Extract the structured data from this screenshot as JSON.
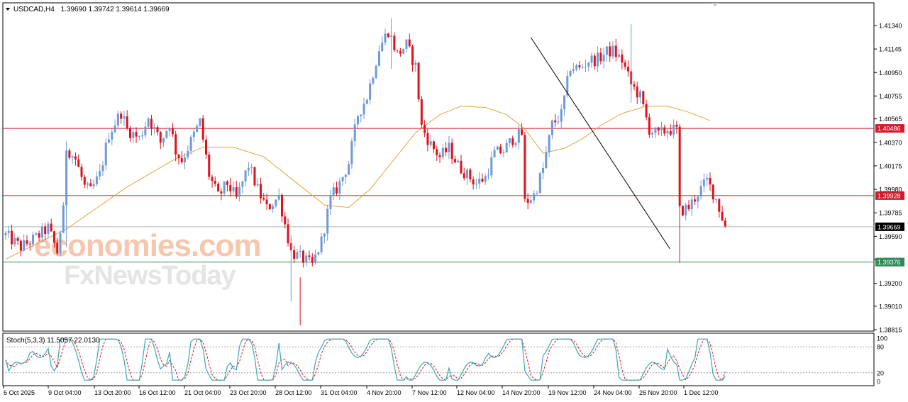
{
  "header": {
    "symbol_timeframe": "USDCAD,H4",
    "ohlc": "1.39690 1.39742 1.39614 1.39669"
  },
  "stoch_header": "Stoch(5,3,3) 11.5057 22.0130",
  "watermark": {
    "line1": "economies.com",
    "line2": "FxNewsToday"
  },
  "colors": {
    "bull": "#6f9ad6",
    "bear": "#e0111b",
    "ma": "#e8a23a",
    "trendline": "#000000",
    "resistance": "#d21a2b",
    "support": "#2e8b57",
    "current": "#000000",
    "stoch_main": "#3aa7b3",
    "stoch_signal": "#e0111b"
  },
  "chart_data": {
    "type": "candlestick",
    "symbol": "USDCAD",
    "timeframe": "H4",
    "ylim": [
      1.3876,
      1.4164
    ],
    "y_ticks": [
      "1.41340",
      "1.41145",
      "1.40950",
      "1.40755",
      "1.40565",
      "1.40370",
      "1.40175",
      "1.39980",
      "1.39785",
      "1.39590",
      "1.39395",
      "1.39200",
      "1.39010",
      "1.38815"
    ],
    "x_labels": [
      "6 Oct 2025",
      "9 Oct 04:00",
      "13 Oct 20:00",
      "16 Oct 12:00",
      "21 Oct 04:00",
      "23 Oct 20:00",
      "28 Oct 12:00",
      "31 Oct 04:00",
      "4 Nov 20:00",
      "7 Nov 12:00",
      "12 Nov 04:00",
      "14 Nov 20:00",
      "19 Nov 12:00",
      "24 Nov 04:00",
      "26 Nov 20:00",
      "1 Dec 12:00"
    ],
    "levels": [
      {
        "name": "resistance-1",
        "value": 1.40486,
        "label": "1.40486"
      },
      {
        "name": "resistance-2",
        "value": 1.39928,
        "label": "1.39928"
      },
      {
        "name": "current-price",
        "value": 1.39669,
        "label": "1.39669"
      },
      {
        "name": "support",
        "value": 1.39376,
        "label": "1.39376"
      }
    ],
    "trendline": [
      {
        "bar": 173,
        "price": 1.4124
      },
      {
        "bar": 230,
        "price": 1.395
      }
    ],
    "close_path": [
      [
        0,
        1.396
      ],
      [
        5,
        1.395
      ],
      [
        10,
        1.3958
      ],
      [
        14,
        1.3966
      ],
      [
        17,
        1.3946
      ],
      [
        19,
        1.398
      ],
      [
        20,
        1.4033
      ],
      [
        23,
        1.4023
      ],
      [
        26,
        1.4
      ],
      [
        28,
        1.3996
      ],
      [
        31,
        1.401
      ],
      [
        34,
        1.4044
      ],
      [
        38,
        1.4062
      ],
      [
        40,
        1.4048
      ],
      [
        44,
        1.404
      ],
      [
        47,
        1.4058
      ],
      [
        51,
        1.4037
      ],
      [
        54,
        1.4053
      ],
      [
        56,
        1.403
      ],
      [
        58,
        1.4022
      ],
      [
        61,
        1.4038
      ],
      [
        64,
        1.4054
      ],
      [
        67,
        1.401
      ],
      [
        70,
        1.3992
      ],
      [
        73,
        1.4003
      ],
      [
        76,
        1.399
      ],
      [
        80,
        1.4018
      ],
      [
        83,
        1.3998
      ],
      [
        86,
        1.3982
      ],
      [
        90,
        1.3992
      ],
      [
        94,
        1.3946
      ],
      [
        98,
        1.394
      ],
      [
        101,
        1.3935
      ],
      [
        104,
        1.3955
      ],
      [
        107,
        1.399
      ],
      [
        110,
        1.4003
      ],
      [
        113,
        1.402
      ],
      [
        116,
        1.406
      ],
      [
        119,
        1.4075
      ],
      [
        123,
        1.4115
      ],
      [
        126,
        1.413
      ],
      [
        129,
        1.411
      ],
      [
        132,
        1.4118
      ],
      [
        135,
        1.41
      ],
      [
        137,
        1.405
      ],
      [
        140,
        1.4035
      ],
      [
        143,
        1.4025
      ],
      [
        146,
        1.4032
      ],
      [
        149,
        1.4018
      ],
      [
        152,
        1.401
      ],
      [
        155,
        1.4003
      ],
      [
        158,
        1.4008
      ],
      [
        161,
        1.4028
      ],
      [
        164,
        1.403
      ],
      [
        167,
        1.404
      ],
      [
        170,
        1.4044
      ],
      [
        171,
        1.3987
      ],
      [
        174,
        1.3993
      ],
      [
        177,
        1.4015
      ],
      [
        180,
        1.4052
      ],
      [
        183,
        1.406
      ],
      [
        186,
        1.41
      ],
      [
        189,
        1.4098
      ],
      [
        192,
        1.4105
      ],
      [
        195,
        1.4106
      ],
      [
        198,
        1.4112
      ],
      [
        200,
        1.4113
      ],
      [
        203,
        1.4105
      ],
      [
        206,
        1.4085
      ],
      [
        209,
        1.4075
      ],
      [
        212,
        1.4048
      ],
      [
        215,
        1.4043
      ],
      [
        218,
        1.4048
      ],
      [
        221,
        1.4047
      ],
      [
        222,
        1.398
      ],
      [
        225,
        1.3983
      ],
      [
        228,
        1.3995
      ],
      [
        231,
        1.4005
      ],
      [
        234,
        1.399
      ],
      [
        237,
        1.3967
      ]
    ],
    "moving_average": [
      [
        0,
        1.394
      ],
      [
        20,
        1.3965
      ],
      [
        40,
        1.4
      ],
      [
        55,
        1.4022
      ],
      [
        65,
        1.4033
      ],
      [
        75,
        1.4033
      ],
      [
        85,
        1.4025
      ],
      [
        95,
        1.4005
      ],
      [
        105,
        1.3985
      ],
      [
        113,
        1.3983
      ],
      [
        120,
        1.3998
      ],
      [
        128,
        1.4023
      ],
      [
        135,
        1.4045
      ],
      [
        143,
        1.406
      ],
      [
        150,
        1.4067
      ],
      [
        158,
        1.4066
      ],
      [
        165,
        1.406
      ],
      [
        171,
        1.4048
      ],
      [
        177,
        1.4028
      ],
      [
        184,
        1.4032
      ],
      [
        190,
        1.404
      ],
      [
        196,
        1.4051
      ],
      [
        203,
        1.4061
      ],
      [
        211,
        1.4067
      ],
      [
        218,
        1.4067
      ],
      [
        225,
        1.4062
      ],
      [
        232,
        1.4055
      ]
    ],
    "stochastic": {
      "params": "5,3,3",
      "main": 11.5057,
      "signal": 22.013,
      "levels": [
        80,
        20
      ],
      "ylim": [
        0,
        100
      ],
      "y_ticks": [
        "100",
        "80",
        "20",
        "0"
      ]
    }
  }
}
